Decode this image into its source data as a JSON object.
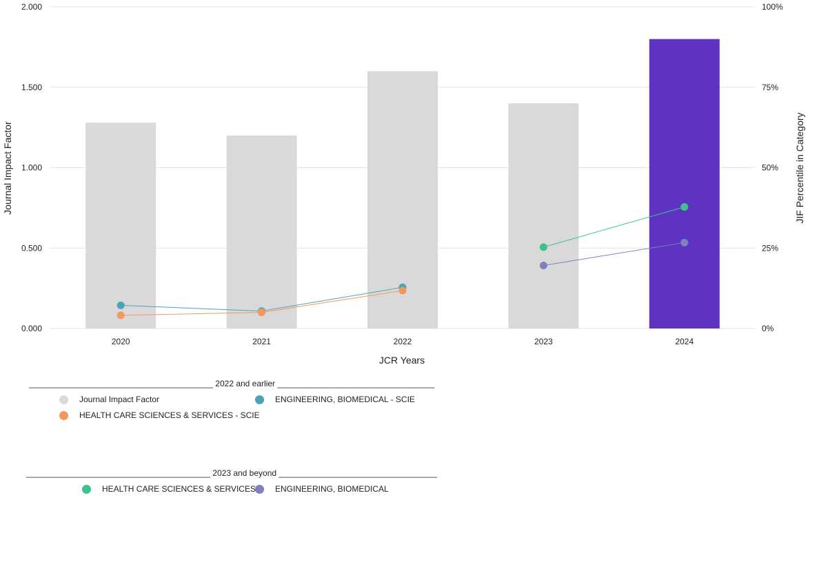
{
  "chart_data": {
    "type": "bar",
    "categories": [
      "2020",
      "2021",
      "2022",
      "2023",
      "2024"
    ],
    "xlabel": "JCR Years",
    "ylabel": "Journal Impact Factor",
    "y2label": "JIF Percentile in Category",
    "ylim": [
      0,
      2.0
    ],
    "y2lim": [
      0,
      100
    ],
    "yticks": [
      "0.000",
      "0.500",
      "1.000",
      "1.500",
      "2.000"
    ],
    "y2ticks": [
      "0%",
      "25%",
      "50%",
      "75%",
      "100%"
    ],
    "grid": true,
    "bars": {
      "name": "Journal Impact Factor",
      "values": [
        1.28,
        1.2,
        1.6,
        1.4,
        1.8
      ],
      "colors": [
        "#d9d9d9",
        "#d9d9d9",
        "#d9d9d9",
        "#d9d9d9",
        "#5f33c1"
      ]
    },
    "series": [
      {
        "name": "ENGINEERING, BIOMEDICAL - SCIE",
        "color": "#4ba3b8",
        "values": [
          7.2,
          5.4,
          12.8,
          null,
          null
        ]
      },
      {
        "name": "HEALTH CARE SCIENCES & SERVICES - SCIE",
        "color": "#f4975f",
        "values": [
          4.1,
          5.0,
          11.8,
          null,
          null
        ]
      },
      {
        "name": "HEALTH CARE SCIENCES & SERVICES",
        "color": "#3ec28b",
        "values": [
          null,
          null,
          null,
          25.3,
          37.8
        ]
      },
      {
        "name": "ENGINEERING, BIOMEDICAL",
        "color": "#7e80c0",
        "values": [
          null,
          null,
          null,
          19.6,
          26.7
        ]
      }
    ]
  },
  "legend": {
    "group1_title": "2022 and earlier",
    "group2_title": "2023 and beyond",
    "jif_color": "#d9d9d9",
    "items_group1": [
      {
        "label": "Journal Impact Factor",
        "color": "#d9d9d9"
      },
      {
        "label": "ENGINEERING, BIOMEDICAL - SCIE",
        "color": "#4ba3b8"
      },
      {
        "label": "HEALTH CARE SCIENCES & SERVICES - SCIE",
        "color": "#f4975f"
      }
    ],
    "items_group2": [
      {
        "label": "HEALTH CARE SCIENCES & SERVICES",
        "color": "#3ec28b"
      },
      {
        "label": "ENGINEERING, BIOMEDICAL",
        "color": "#7e80c0"
      }
    ]
  }
}
